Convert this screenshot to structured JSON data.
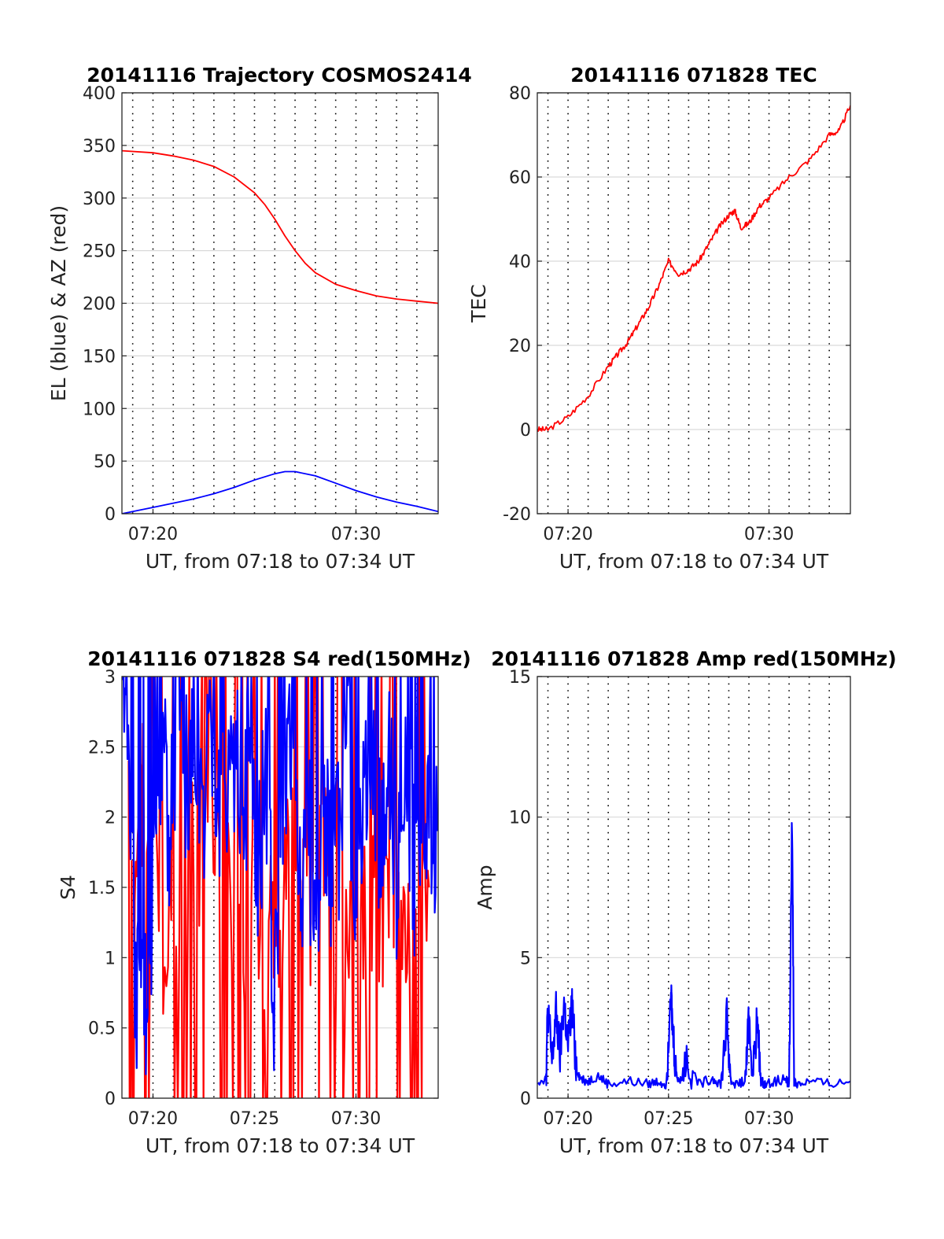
{
  "chart_data": [
    {
      "id": "traj",
      "type": "line",
      "title": "20141116 Trajectory COSMOS2414",
      "xlabel": "UT, from 07:18 to 07:34 UT",
      "ylabel": "EL (blue) & AZ (red)",
      "xlim_minutes_after_0700": [
        18.47,
        34.05
      ],
      "ylim": [
        0,
        400
      ],
      "yticks": [
        "0",
        "50",
        "100",
        "150",
        "200",
        "250",
        "300",
        "350",
        "400"
      ],
      "xticks": [
        {
          "label": "07:20",
          "min": 20
        },
        {
          "label": "07:30",
          "min": 30
        }
      ],
      "grid": true,
      "series": [
        {
          "color": "#ff0000",
          "x": [
            18.47,
            20,
            21,
            22,
            23,
            24,
            25,
            25.5,
            26,
            26.5,
            27,
            27.5,
            28,
            29,
            30,
            31,
            32,
            33,
            34.05
          ],
          "y": [
            345,
            343,
            340,
            336,
            330,
            320,
            305,
            294,
            280,
            264,
            250,
            238,
            229,
            218,
            212,
            207,
            204,
            202,
            200
          ]
        },
        {
          "color": "#0000ff",
          "x": [
            18.47,
            20,
            21,
            22,
            23,
            24,
            25,
            26,
            26.5,
            27,
            28,
            29,
            30,
            31,
            32,
            33,
            34.05
          ],
          "y": [
            0,
            6,
            10,
            14,
            19,
            25,
            32,
            38,
            40,
            40,
            36,
            29,
            22,
            16,
            11,
            7,
            2
          ]
        }
      ]
    },
    {
      "id": "tec",
      "type": "line",
      "title": "20141116 071828 TEC",
      "xlabel": "UT, from 07:18 to 07:34 UT",
      "ylabel": "TEC",
      "xlim_minutes_after_0700": [
        18.47,
        34.05
      ],
      "ylim": [
        -20,
        80
      ],
      "yticks": [
        "-20",
        "0",
        "20",
        "40",
        "60",
        "80"
      ],
      "xticks": [
        {
          "label": "07:20",
          "min": 20
        },
        {
          "label": "07:30",
          "min": 30
        }
      ],
      "grid": true,
      "series": [
        {
          "color": "#ff0000",
          "x": [
            18.47,
            19,
            20,
            21,
            22,
            22.5,
            23,
            23.5,
            24,
            24.5,
            25,
            25.5,
            26,
            26.5,
            27,
            27.5,
            28,
            28.3,
            28.6,
            29,
            29.5,
            30,
            31,
            32,
            33,
            33.5,
            34.05
          ],
          "y": [
            0,
            0,
            3,
            8,
            15,
            18,
            21,
            25,
            29,
            34,
            40,
            37,
            38,
            40,
            44,
            48,
            51,
            52,
            48,
            49,
            53,
            55,
            60,
            64,
            70,
            71,
            77
          ]
        }
      ]
    },
    {
      "id": "s4",
      "type": "line",
      "title": "20141116 071828 S4 red(150MHz)",
      "xlabel": "UT, from 07:18 to 07:34 UT",
      "ylabel": "S4",
      "xlim_minutes_after_0700": [
        18.47,
        34.05
      ],
      "ylim": [
        0,
        3
      ],
      "yticks": [
        "0",
        "0.5",
        "1",
        "1.5",
        "2",
        "2.5",
        "3"
      ],
      "xticks": [
        {
          "label": "07:20",
          "min": 20
        },
        {
          "label": "07:25",
          "min": 25
        },
        {
          "label": "07:30",
          "min": 30
        }
      ],
      "grid": true,
      "series": [
        {
          "color": "#ff0000",
          "x": [
            18.8,
            19.3,
            19.8,
            20.5,
            21.3,
            22.0,
            22.7,
            23.4,
            24.0,
            24.5,
            25.0,
            25.7,
            26.2,
            26.8,
            27.4,
            28.0,
            28.6,
            29.3,
            30.0,
            30.6,
            31.2,
            31.8,
            32.4,
            33.0,
            33.6
          ],
          "y": [
            1.8,
            1.9,
            2.2,
            1.2,
            1.7,
            2.0,
            1.6,
            1.9,
            1.5,
            1.3,
            1.5,
            1.1,
            1.4,
            1.7,
            1.2,
            1.6,
            1.8,
            1.0,
            1.4,
            1.3,
            1.5,
            1.2,
            1.4,
            1.3,
            1.5
          ]
        },
        {
          "color": "#0000ff",
          "x": [
            18.5,
            18.9,
            19.2,
            19.5,
            19.8,
            20.1,
            20.4,
            20.8,
            21.2,
            21.6,
            22.0,
            22.4,
            22.8,
            23.2,
            23.6,
            24.0,
            24.4,
            24.8,
            25.2,
            25.6,
            26.0,
            26.4,
            26.8,
            27.2,
            27.6,
            28.0,
            28.4,
            28.8,
            29.2,
            29.6,
            30.0,
            30.4,
            30.8,
            31.2,
            31.6,
            32.0,
            32.4,
            32.8,
            33.2,
            33.6,
            34.0
          ],
          "y": [
            3.0,
            1.6,
            0.7,
            0.55,
            0.6,
            2.2,
            2.6,
            1.9,
            2.8,
            2.2,
            2.4,
            2.0,
            2.7,
            1.8,
            2.1,
            2.5,
            1.9,
            2.6,
            1.7,
            2.3,
            0.6,
            2.0,
            2.4,
            1.5,
            2.0,
            1.2,
            2.2,
            1.4,
            1.9,
            2.5,
            1.6,
            2.2,
            2.7,
            1.8,
            2.4,
            1.6,
            2.6,
            1.7,
            1.5,
            2.1,
            1.9
          ]
        }
      ]
    },
    {
      "id": "amp",
      "type": "line",
      "title": "20141116 071828 Amp red(150MHz)",
      "xlabel": "UT, from 07:18 to 07:34 UT",
      "ylabel": "Amp",
      "xlim_minutes_after_0700": [
        18.47,
        34.05
      ],
      "ylim": [
        0,
        15
      ],
      "yticks": [
        "0",
        "5",
        "10",
        "15"
      ],
      "xticks": [
        {
          "label": "07:20",
          "min": 20
        },
        {
          "label": "07:25",
          "min": 25
        },
        {
          "label": "07:30",
          "min": 30
        }
      ],
      "grid": true,
      "series": [
        {
          "color": "#0000ff",
          "x": [
            18.5,
            18.9,
            19.0,
            19.2,
            19.4,
            19.6,
            19.8,
            20.0,
            20.2,
            20.4,
            20.6,
            21.0,
            21.5,
            22.0,
            23.0,
            24.0,
            24.5,
            24.9,
            25.1,
            25.2,
            25.4,
            25.6,
            25.9,
            26.5,
            27.2,
            27.6,
            27.9,
            28.1,
            28.3,
            28.8,
            29.0,
            29.2,
            29.4,
            29.6,
            29.8,
            30.3,
            30.8,
            31.0,
            31.15,
            31.25,
            31.4,
            32.0,
            33.0,
            34.05
          ],
          "y": [
            0.6,
            0.7,
            3.3,
            1.2,
            3.0,
            1.5,
            3.4,
            1.8,
            3.3,
            1.2,
            0.7,
            0.6,
            0.8,
            0.5,
            0.6,
            0.5,
            0.6,
            0.5,
            4.1,
            2.5,
            0.8,
            0.6,
            1.5,
            0.5,
            0.7,
            0.5,
            2.8,
            0.6,
            0.5,
            0.6,
            2.7,
            0.8,
            2.7,
            0.6,
            0.5,
            0.6,
            0.7,
            0.5,
            10.0,
            0.6,
            0.5,
            0.6,
            0.5,
            0.6
          ]
        }
      ]
    }
  ]
}
